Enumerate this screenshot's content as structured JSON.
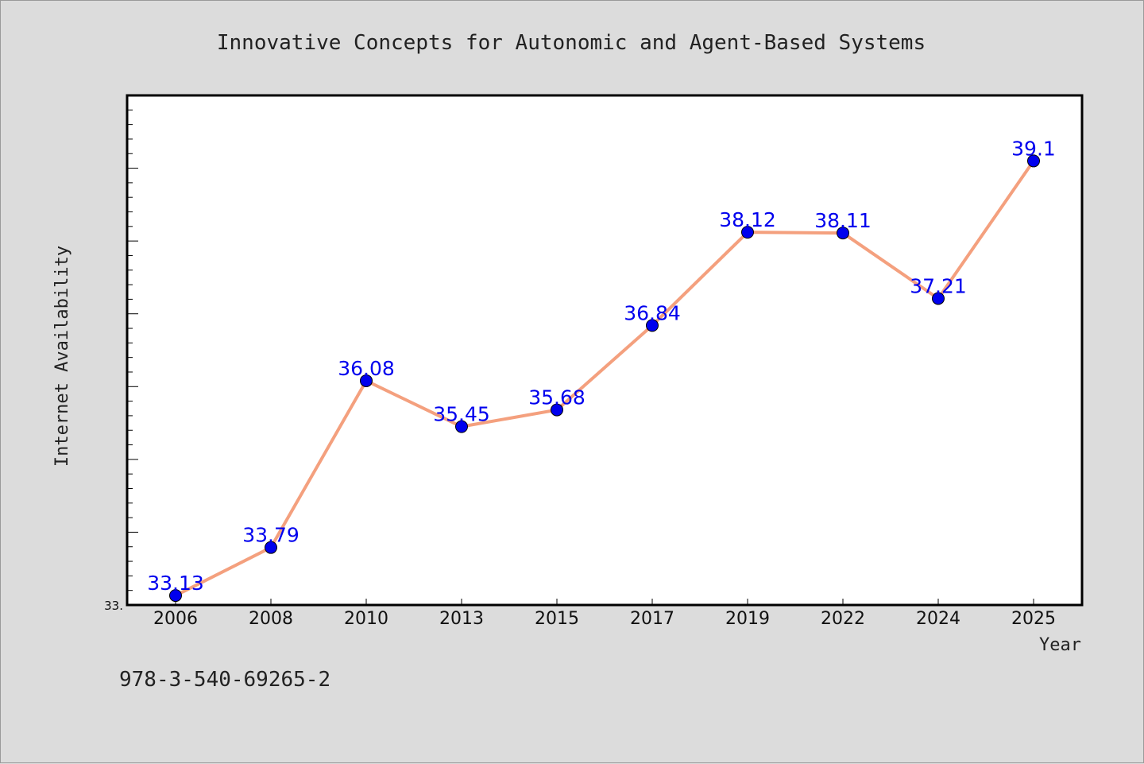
{
  "chart_data": {
    "type": "line",
    "title": "Innovative Concepts for Autonomic and Agent-Based Systems",
    "xlabel": "Year",
    "ylabel": "Internet Availability",
    "categories": [
      "2006",
      "2008",
      "2010",
      "2013",
      "2015",
      "2017",
      "2019",
      "2022",
      "2024",
      "2025"
    ],
    "series": [
      {
        "values": [
          33.13,
          33.79,
          36.08,
          35.45,
          35.68,
          36.84,
          38.12,
          38.11,
          37.21,
          39.1
        ],
        "labels": [
          "33.13",
          "33.79",
          "36.08",
          "35.45",
          "35.68",
          "36.84",
          "38.12",
          "38.11",
          "37.21",
          "39.1"
        ],
        "line_color": "#f4a07e",
        "marker_color": "#0000ee"
      }
    ],
    "ylim": [
      33.0,
      40.0
    ],
    "y_tick_label": "33.",
    "grid": false,
    "legend": "none"
  },
  "footer": {
    "text": "978-3-540-69265-2"
  },
  "colors": {
    "background": "#dcdcdc",
    "plot_background": "#ffffff",
    "line": "#f4a07e",
    "marker": "#0000ee",
    "data_label": "#0000ee"
  }
}
